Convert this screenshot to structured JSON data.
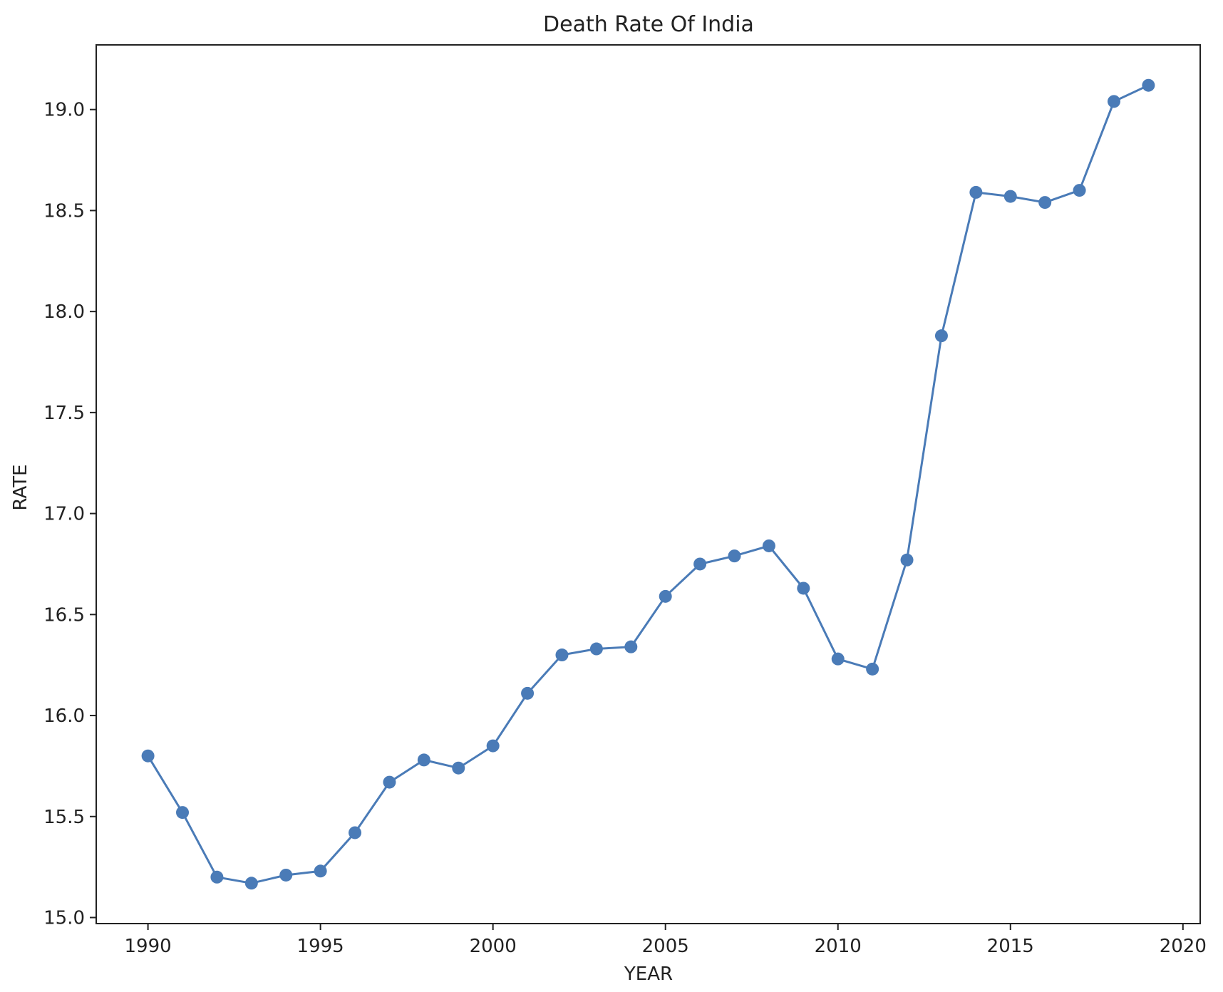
{
  "chart_data": {
    "type": "line",
    "title": "Death Rate Of India",
    "xlabel": "YEAR",
    "ylabel": "RATE",
    "xlim": [
      1988.5,
      2020.5
    ],
    "ylim": [
      14.97,
      19.32
    ],
    "xticks": [
      1990,
      1995,
      2000,
      2005,
      2010,
      2015,
      2020
    ],
    "yticks": [
      15.0,
      15.5,
      16.0,
      16.5,
      17.0,
      17.5,
      18.0,
      18.5,
      19.0
    ],
    "grid": false,
    "marker": "circle",
    "series": [
      {
        "color": "#4a7bb7",
        "x": [
          1990,
          1991,
          1992,
          1993,
          1994,
          1995,
          1996,
          1997,
          1998,
          1999,
          2000,
          2001,
          2002,
          2003,
          2004,
          2005,
          2006,
          2007,
          2008,
          2009,
          2010,
          2011,
          2012,
          2013,
          2014,
          2015,
          2016,
          2017,
          2018,
          2019
        ],
        "y": [
          15.8,
          15.52,
          15.2,
          15.17,
          15.21,
          15.23,
          15.42,
          15.67,
          15.78,
          15.74,
          15.85,
          16.11,
          16.3,
          16.33,
          16.34,
          16.59,
          16.75,
          16.79,
          16.84,
          16.63,
          16.28,
          16.23,
          16.77,
          17.88,
          18.59,
          18.57,
          18.54,
          18.6,
          19.04,
          19.12
        ]
      }
    ]
  }
}
